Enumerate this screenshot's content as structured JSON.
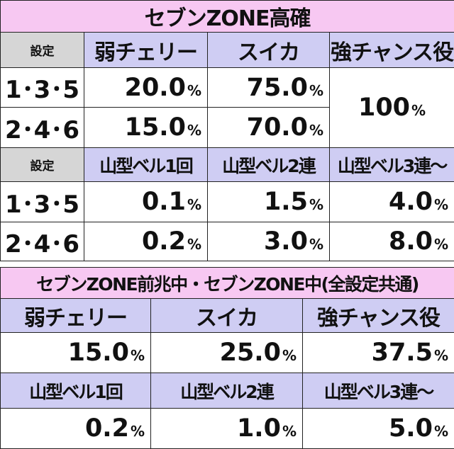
{
  "table1": {
    "title": "セブンZONE高確",
    "header1": [
      "設定",
      "弱チェリー",
      "スイカ",
      "強チャンス役"
    ],
    "rows1": [
      {
        "setting": "1･3･5",
        "values": [
          "20.0",
          "75.0"
        ]
      },
      {
        "setting": "2･4･6",
        "values": [
          "15.0",
          "70.0"
        ]
      }
    ],
    "merged_value": "100",
    "header2": [
      "設定",
      "山型ベル1回",
      "山型ベル2連",
      "山型ベル3連～"
    ],
    "rows2": [
      {
        "setting": "1･3･5",
        "values": [
          "0.1",
          "1.5",
          "4.0"
        ]
      },
      {
        "setting": "2･4･6",
        "values": [
          "0.2",
          "3.0",
          "8.0"
        ]
      }
    ]
  },
  "table2": {
    "title": "セブンZONE前兆中・セブンZONE中(全設定共通)",
    "header1": [
      "弱チェリー",
      "スイカ",
      "強チャンス役"
    ],
    "row1": [
      "15.0",
      "25.0",
      "37.5"
    ],
    "header2": [
      "山型ベル1回",
      "山型ベル2連",
      "山型ベル3連～"
    ],
    "row2": [
      "0.2",
      "1.0",
      "5.0"
    ]
  },
  "unit": "%",
  "colors": {
    "title_bg": "#f7c8f2",
    "header_bg": "#cfcdf3",
    "setting_bg": "#d6d6d6",
    "border": "#222222"
  }
}
